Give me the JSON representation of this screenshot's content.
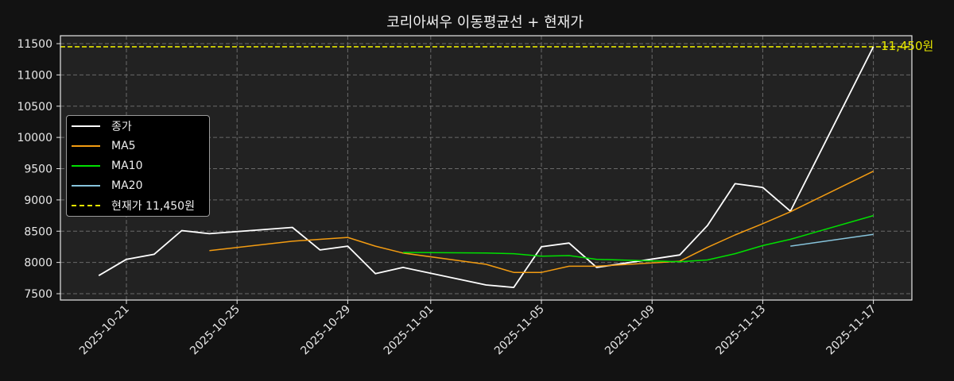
{
  "title": "코리아써우 이동평균선 + 현재가",
  "current_price_label": "11,450원",
  "colors": {
    "background": "#121212",
    "plot_background": "#222222",
    "close": "#ffffff",
    "ma5": "#f39c12",
    "ma10": "#00e000",
    "ma20": "#87c4dc",
    "current": "#e6e600",
    "grid": "#6a6a6a"
  },
  "legend": {
    "items": [
      {
        "label": "종가",
        "color": "#ffffff",
        "style": "solid"
      },
      {
        "label": "MA5",
        "color": "#f39c12",
        "style": "solid"
      },
      {
        "label": "MA10",
        "color": "#00e000",
        "style": "solid"
      },
      {
        "label": "MA20",
        "color": "#87c4dc",
        "style": "solid"
      },
      {
        "label": "현재가 11,450원",
        "color": "#e6e600",
        "style": "dashed"
      }
    ]
  },
  "chart_data": {
    "type": "line",
    "title": "코리아써우 이동평균선 + 현재가",
    "xlabel": "",
    "ylabel": "",
    "ylim": [
      7400,
      11620
    ],
    "yticks": [
      7500,
      8000,
      8500,
      9000,
      9500,
      10000,
      10500,
      11000,
      11500
    ],
    "xticks": [
      "2025-10-21",
      "2025-10-25",
      "2025-10-29",
      "2025-11-01",
      "2025-11-05",
      "2025-11-09",
      "2025-11-13",
      "2025-11-17"
    ],
    "grid": true,
    "legend_position": "center left",
    "x": [
      "2025-10-20",
      "2025-10-21",
      "2025-10-22",
      "2025-10-23",
      "2025-10-24",
      "2025-10-27",
      "2025-10-28",
      "2025-10-29",
      "2025-10-30",
      "2025-10-31",
      "2025-11-03",
      "2025-11-04",
      "2025-11-05",
      "2025-11-06",
      "2025-11-07",
      "2025-11-10",
      "2025-11-11",
      "2025-11-12",
      "2025-11-13",
      "2025-11-14",
      "2025-11-17"
    ],
    "series": [
      {
        "name": "종가",
        "values": [
          7790,
          8050,
          8130,
          8510,
          8460,
          8560,
          8200,
          8260,
          7820,
          7920,
          7640,
          7600,
          8250,
          8310,
          7920,
          8120,
          8590,
          9260,
          9200,
          8820,
          11450
        ]
      },
      {
        "name": "MA5",
        "values": [
          null,
          null,
          null,
          null,
          8190,
          8340,
          8370,
          8400,
          8260,
          8150,
          7970,
          7840,
          7840,
          7940,
          7940,
          8020,
          8240,
          8440,
          8620,
          8810,
          9460
        ]
      },
      {
        "name": "MA10",
        "values": [
          null,
          null,
          null,
          null,
          null,
          null,
          null,
          null,
          null,
          8160,
          8150,
          8140,
          8100,
          8110,
          8050,
          8010,
          8040,
          8140,
          8270,
          8370,
          8750
        ]
      },
      {
        "name": "MA20",
        "values": [
          null,
          null,
          null,
          null,
          null,
          null,
          null,
          null,
          null,
          null,
          null,
          null,
          null,
          null,
          null,
          null,
          null,
          null,
          null,
          8260,
          8450
        ]
      }
    ],
    "hlines": [
      {
        "name": "현재가 11,450원",
        "value": 11450,
        "style": "dashed",
        "color": "#e6e600"
      }
    ]
  }
}
